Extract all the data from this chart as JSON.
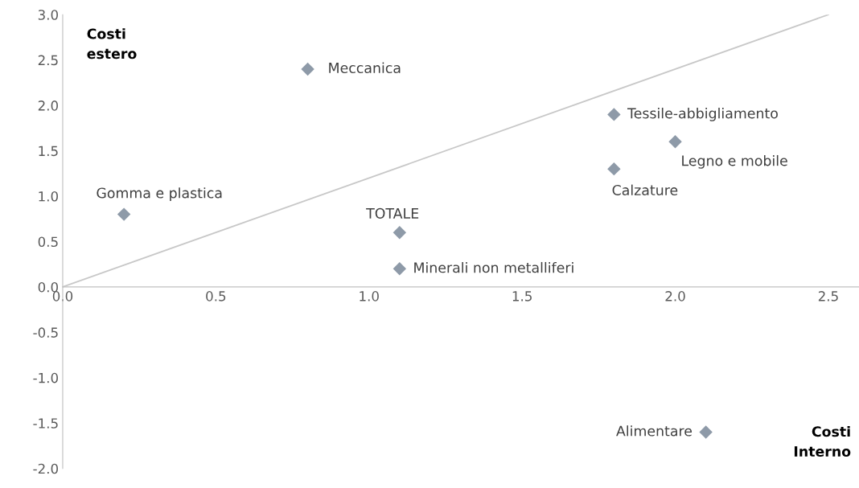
{
  "chart_data": {
    "type": "scatter",
    "grid": false,
    "legend": false,
    "xlim": [
      0,
      2.6
    ],
    "ylim": [
      -2.0,
      3.0
    ],
    "xticks": [
      {
        "value": 0,
        "label": "0.0"
      },
      0.5,
      {
        "value": 1,
        "label": "1.0"
      },
      1.5,
      {
        "value": 2,
        "label": "2.0"
      },
      2.5
    ],
    "yticks": [
      {
        "value": -2,
        "label": "-2.0"
      },
      -1.5,
      {
        "value": -1,
        "label": "-1.0"
      },
      -0.5,
      {
        "value": 0,
        "label": "0.0"
      },
      0.5,
      {
        "value": 1,
        "label": "1.0"
      },
      1.5,
      {
        "value": 2,
        "label": "2.0"
      },
      2.5,
      {
        "value": 3,
        "label": "3.0"
      }
    ],
    "series": [
      {
        "color": "#8e9aa8",
        "marker": "diamond",
        "x": [
          0.8,
          0.2,
          1.1,
          1.1,
          1.8,
          2.0,
          1.8,
          2.1
        ],
        "values": [
          2.4,
          0.8,
          0.6,
          0.2,
          1.9,
          1.6,
          1.3,
          -1.6
        ]
      },
      {
        "type": "line",
        "color": "#c8c8c8",
        "x": [
          0,
          2.5
        ],
        "values": [
          0,
          3.0
        ]
      }
    ],
    "annotations": [
      {
        "text": "Meccanica",
        "x": 0.8,
        "y": 2.4
      },
      {
        "text": "Gomma e plastica",
        "x": 0.2,
        "y": 0.8
      },
      {
        "text": "TOTALE",
        "x": 1.1,
        "y": 0.6
      },
      {
        "text": "Minerali non metalliferi",
        "x": 1.1,
        "y": 0.2
      },
      {
        "text": "Tessile-abbigliamento",
        "x": 1.8,
        "y": 1.9
      },
      {
        "text": "Legno e mobile",
        "x": 2.0,
        "y": 1.6
      },
      {
        "text": "Calzature",
        "x": 1.8,
        "y": 1.3
      },
      {
        "text": "Alimentare",
        "x": 2.1,
        "y": -1.6
      },
      "Costi\nestero",
      "Costi\nInterno"
    ]
  }
}
